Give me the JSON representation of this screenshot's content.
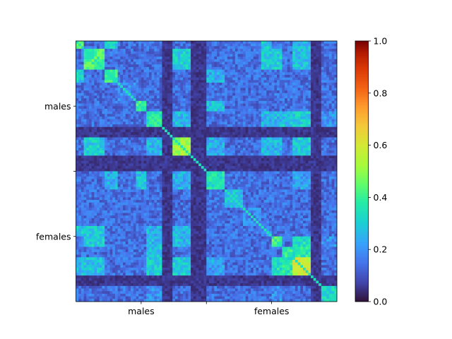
{
  "chart_data": {
    "type": "heatmap",
    "title": "",
    "xlabel": "",
    "ylabel": "",
    "n": 100,
    "x_tick_labels": [
      "males",
      "",
      "females"
    ],
    "y_tick_labels": [
      "males",
      "",
      "females"
    ],
    "colormap": "turbo",
    "colorbar": {
      "vmin": 0.0,
      "vmax": 1.0,
      "ticks": [
        "0.0",
        "0.2",
        "0.4",
        "0.6",
        "0.8",
        "1.0"
      ]
    },
    "diagonal_blocks": [
      {
        "start": 0,
        "end": 3,
        "value": 0.48
      },
      {
        "start": 3,
        "end": 11,
        "value": 0.42
      },
      {
        "start": 11,
        "end": 16,
        "value": 0.4
      },
      {
        "start": 16,
        "end": 23,
        "value": 0.18
      },
      {
        "start": 23,
        "end": 27,
        "value": 0.42
      },
      {
        "start": 27,
        "end": 33,
        "value": 0.36
      },
      {
        "start": 33,
        "end": 37,
        "value": 0.3
      },
      {
        "start": 37,
        "end": 44,
        "value": 0.52
      },
      {
        "start": 44,
        "end": 50,
        "value": 0.15
      },
      {
        "start": 50,
        "end": 57,
        "value": 0.34
      },
      {
        "start": 57,
        "end": 64,
        "value": 0.28
      },
      {
        "start": 64,
        "end": 71,
        "value": 0.18
      },
      {
        "start": 71,
        "end": 75,
        "value": 0.2
      },
      {
        "start": 75,
        "end": 79,
        "value": 0.42
      },
      {
        "start": 79,
        "end": 83,
        "value": 0.38
      },
      {
        "start": 83,
        "end": 90,
        "value": 0.58
      },
      {
        "start": 90,
        "end": 94,
        "value": 0.2
      },
      {
        "start": 94,
        "end": 100,
        "value": 0.32
      }
    ],
    "off_diagonal_blocks": [
      {
        "rows": [
          3,
          11
        ],
        "cols": [
          37,
          44
        ],
        "value": 0.3
      },
      {
        "rows": [
          3,
          11
        ],
        "cols": [
          71,
          79
        ],
        "value": 0.3
      },
      {
        "rows": [
          3,
          11
        ],
        "cols": [
          83,
          90
        ],
        "value": 0.28
      },
      {
        "rows": [
          0,
          3
        ],
        "cols": [
          11,
          16
        ],
        "value": 0.3
      },
      {
        "rows": [
          0,
          3
        ],
        "cols": [
          71,
          75
        ],
        "value": 0.3
      },
      {
        "rows": [
          0,
          3
        ],
        "cols": [
          83,
          90
        ],
        "value": 0.26
      },
      {
        "rows": [
          23,
          27
        ],
        "cols": [
          50,
          57
        ],
        "value": 0.28
      },
      {
        "rows": [
          27,
          33
        ],
        "cols": [
          37,
          44
        ],
        "value": 0.26
      },
      {
        "rows": [
          27,
          33
        ],
        "cols": [
          83,
          90
        ],
        "value": 0.34
      },
      {
        "rows": [
          27,
          33
        ],
        "cols": [
          71,
          79
        ],
        "value": 0.26
      },
      {
        "rows": [
          37,
          44
        ],
        "cols": [
          83,
          90
        ],
        "value": 0.3
      },
      {
        "rows": [
          37,
          44
        ],
        "cols": [
          71,
          79
        ],
        "value": 0.26
      },
      {
        "rows": [
          37,
          44
        ],
        "cols": [
          50,
          57
        ],
        "value": 0.24
      },
      {
        "rows": [
          50,
          57
        ],
        "cols": [
          11,
          16
        ],
        "value": 0.24
      },
      {
        "rows": [
          50,
          57
        ],
        "cols": [
          83,
          90
        ],
        "value": 0.22
      },
      {
        "rows": [
          71,
          79
        ],
        "cols": [
          27,
          33
        ],
        "value": 0.26
      },
      {
        "rows": [
          75,
          79
        ],
        "cols": [
          83,
          90
        ],
        "value": 0.34
      },
      {
        "rows": [
          79,
          83
        ],
        "cols": [
          27,
          33
        ],
        "value": 0.28
      },
      {
        "rows": [
          79,
          83
        ],
        "cols": [
          83,
          90
        ],
        "value": 0.36
      },
      {
        "rows": [
          83,
          90
        ],
        "cols": [
          27,
          33
        ],
        "value": 0.3
      },
      {
        "rows": [
          94,
          100
        ],
        "cols": [
          27,
          33
        ],
        "value": 0.2
      },
      {
        "rows": [
          94,
          100
        ],
        "cols": [
          75,
          79
        ],
        "value": 0.2
      }
    ],
    "dark_bands": [
      33,
      34,
      35,
      36,
      44,
      45,
      46,
      47,
      48,
      49,
      90,
      91,
      92,
      93
    ],
    "background_value": 0.14
  }
}
